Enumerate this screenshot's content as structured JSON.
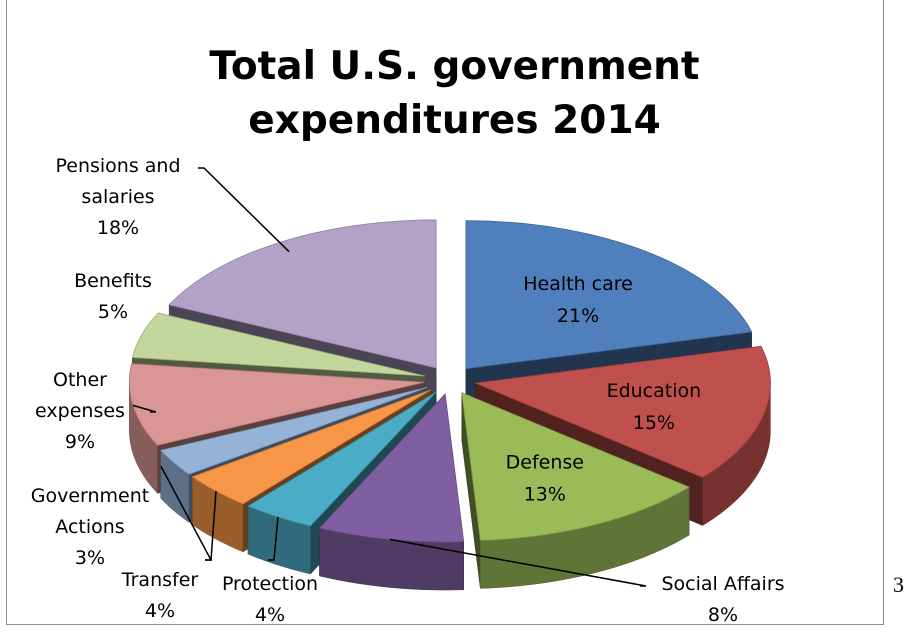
{
  "chart_data": {
    "type": "pie",
    "title": "Total U.S. government\nexpenditures 2014",
    "slices": [
      {
        "label": "Health care",
        "value": 21,
        "display": "21%",
        "color": "#4f7fbd"
      },
      {
        "label": "Education",
        "value": 15,
        "display": "15%",
        "color": "#c0504d"
      },
      {
        "label": "Defense",
        "value": 13,
        "display": "13%",
        "color": "#9bbb59"
      },
      {
        "label": "Social Affairs",
        "value": 8,
        "display": "8%",
        "color": "#7f5fa1"
      },
      {
        "label": "Protection",
        "value": 4,
        "display": "4%",
        "color": "#4bacc6"
      },
      {
        "label": "Transfer",
        "value": 4,
        "display": "4%",
        "color": "#f79646"
      },
      {
        "label": "Government Actions",
        "value": 3,
        "display": "3%",
        "color": "#95b3d7"
      },
      {
        "label": "Other expenses",
        "value": 9,
        "display": "9%",
        "color": "#d99694"
      },
      {
        "label": "Benefits",
        "value": 5,
        "display": "5%",
        "color": "#c3d69b"
      },
      {
        "label": "Pensions and salaries",
        "value": 18,
        "display": "18%",
        "color": "#b3a2c7"
      }
    ],
    "style": "3d-exploded"
  },
  "page_number": "3"
}
